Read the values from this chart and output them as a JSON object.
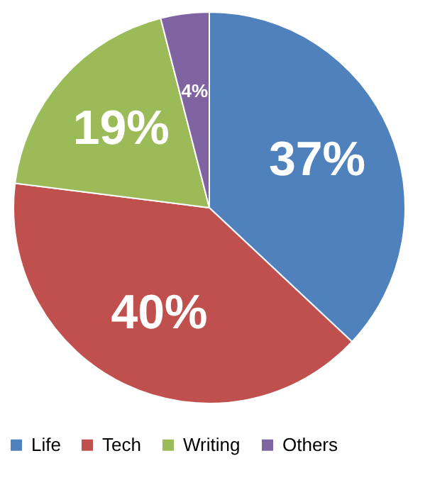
{
  "chart_data": {
    "type": "pie",
    "categories": [
      "Life",
      "Tech",
      "Writing",
      "Others"
    ],
    "values": [
      37,
      40,
      19,
      4
    ],
    "colors": [
      "#4f81bd",
      "#c0504d",
      "#9bbb59",
      "#8064a2"
    ],
    "value_labels": [
      "37%",
      "40%",
      "19%",
      "4%"
    ],
    "legend": "bottom"
  }
}
